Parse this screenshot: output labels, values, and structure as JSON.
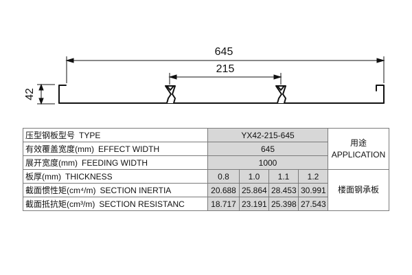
{
  "drawing": {
    "overall_width_label": "645",
    "pitch_label": "215",
    "height_label": "42"
  },
  "table": {
    "rows": {
      "type": {
        "cn": "压型钢板型号",
        "en": "TYPE",
        "value": "YX42-215-645"
      },
      "effect_width": {
        "cn": "有效覆盖宽度(mm)",
        "en": "EFFECT WIDTH",
        "value": "645"
      },
      "feeding_width": {
        "cn": "展开宽度(mm)",
        "en": "FEEDING WIDTH",
        "value": "1000"
      },
      "thickness": {
        "cn": "板厚(mm)",
        "en": "THICKNESS",
        "values": [
          "0.8",
          "1.0",
          "1.1",
          "1.2"
        ]
      },
      "section_inertia": {
        "cn": "截面惯性矩(cm⁴/m)",
        "en": "SECTION INERTIA",
        "values": [
          "20.688",
          "25.864",
          "28.453",
          "30.991"
        ]
      },
      "section_resistance": {
        "cn": "截面抵抗矩(cm³/m)",
        "en": "SECTION RESISTANC",
        "values": [
          "18.717",
          "23.191",
          "25.398",
          "27.543"
        ]
      }
    },
    "application": {
      "cn": "用途",
      "en": "APPLICATION",
      "value": "楼面钢承板"
    }
  }
}
